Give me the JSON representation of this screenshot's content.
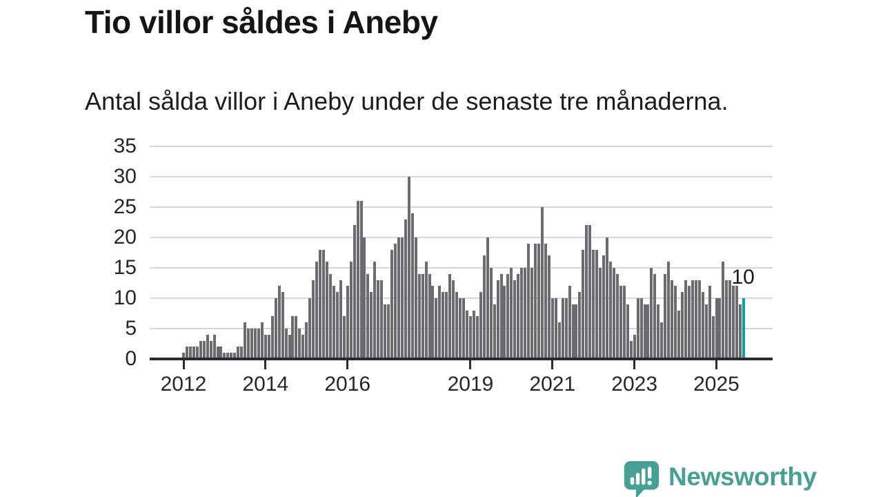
{
  "header": {
    "title": "Tio villor såldes i Aneby",
    "subtitle": "Antal sålda villor i Aneby under de senaste tre månaderna."
  },
  "chart_data": {
    "type": "bar",
    "title": "Tio villor såldes i Aneby",
    "subtitle": "Antal sålda villor i Aneby under de senaste tre månaderna.",
    "frequency": "monthly",
    "x_range_years": [
      "2012",
      "2025"
    ],
    "values": [
      1,
      2,
      2,
      2,
      2,
      3,
      3,
      4,
      3,
      4,
      2,
      2,
      1,
      1,
      1,
      1,
      2,
      2,
      6,
      5,
      5,
      5,
      5,
      6,
      4,
      4,
      7,
      10,
      12,
      11,
      5,
      4,
      7,
      7,
      5,
      4,
      6,
      10,
      13,
      16,
      18,
      18,
      16,
      14,
      12,
      11,
      13,
      7,
      12,
      16,
      22,
      26,
      26,
      20,
      14,
      11,
      16,
      13,
      13,
      9,
      9,
      18,
      19,
      20,
      20,
      23,
      30,
      24,
      20,
      14,
      14,
      16,
      14,
      12,
      10,
      12,
      11,
      11,
      14,
      13,
      11,
      10,
      10,
      8,
      7,
      8,
      7,
      11,
      17,
      20,
      15,
      9,
      13,
      14,
      12,
      14,
      15,
      13,
      14,
      15,
      15,
      19,
      15,
      19,
      19,
      25,
      19,
      17,
      10,
      10,
      6,
      10,
      10,
      12,
      9,
      9,
      11,
      18,
      22,
      22,
      18,
      18,
      15,
      17,
      20,
      16,
      15,
      14,
      12,
      12,
      9,
      3,
      4,
      10,
      10,
      9,
      9,
      15,
      14,
      9,
      6,
      14,
      16,
      13,
      12,
      8,
      11,
      13,
      12,
      13,
      13,
      13,
      11,
      9,
      12,
      7,
      10,
      10,
      16,
      13,
      13,
      12,
      12,
      9,
      10
    ],
    "highlight_last": true,
    "last_value_label": "10",
    "y_ticks": [
      0,
      5,
      10,
      15,
      20,
      25,
      30,
      35
    ],
    "ylim": [
      0,
      35
    ],
    "x_ticks": [
      {
        "label": "2012",
        "index": 0
      },
      {
        "label": "2014",
        "index": 24
      },
      {
        "label": "2016",
        "index": 48
      },
      {
        "label": "2019",
        "index": 84
      },
      {
        "label": "2021",
        "index": 108
      },
      {
        "label": "2023",
        "index": 132
      },
      {
        "label": "2025",
        "index": 156
      }
    ],
    "grid": true,
    "legend": false,
    "colors": {
      "bar": "#6C6C70",
      "highlight": "#0AA1A0",
      "grid": "#D9D9D9",
      "axis": "#2B2B2B"
    }
  },
  "footer": {
    "brand": "Newsworthy",
    "brand_color": "#46A094",
    "logo_icon": "bar-chart-speech-bubble-icon"
  }
}
